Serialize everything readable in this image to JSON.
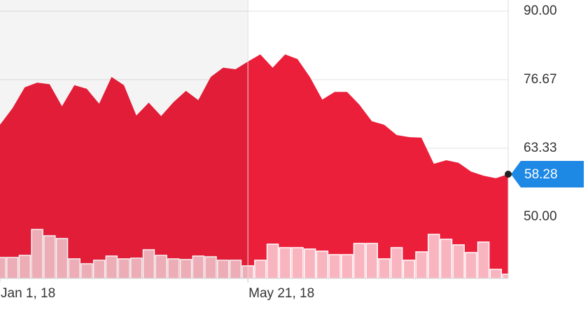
{
  "chart_data": {
    "type": "area",
    "categories": [
      "Jan 1, 18",
      null,
      null,
      null,
      null,
      null,
      null,
      null,
      null,
      null,
      null,
      null,
      null,
      null,
      null,
      null,
      null,
      null,
      null,
      null,
      "May 21, 18",
      null,
      null,
      null,
      null,
      null,
      null,
      null,
      null,
      null,
      null,
      null,
      null,
      null,
      null,
      null,
      null,
      null,
      null,
      null,
      null,
      null
    ],
    "series": [
      {
        "color": "#ec1f3b",
        "values": [
          67.9,
          71.1,
          75.2,
          76.1,
          75.8,
          71.5,
          75.6,
          74.9,
          72.0,
          77.2,
          75.6,
          69.7,
          72.2,
          69.6,
          72.3,
          74.5,
          72.7,
          77.2,
          79.0,
          78.7,
          80.2,
          81.6,
          79.0,
          81.6,
          80.7,
          77.2,
          72.8,
          74.3,
          74.3,
          71.8,
          68.6,
          67.9,
          65.9,
          65.5,
          65.4,
          60.3,
          61.0,
          60.5,
          58.8,
          58.0,
          57.5,
          58.28
        ]
      },
      {
        "color": "#f8b5c0",
        "axis": "y2",
        "values": [
          30,
          30,
          33,
          70,
          61,
          57,
          28,
          21,
          26,
          32,
          28,
          29,
          41,
          33,
          28,
          27,
          32,
          31,
          26,
          26,
          18,
          26,
          49,
          44,
          44,
          42,
          39,
          34,
          34,
          50,
          50,
          28,
          44,
          26,
          38,
          63,
          56,
          48,
          37,
          52,
          13,
          6
        ]
      }
    ],
    "ylim": [
      38,
      90
    ],
    "yticks": [
      {
        "value": 90,
        "label": "90.00"
      },
      76.67,
      63.33,
      {
        "value": 50,
        "label": "50.00"
      }
    ],
    "y2lim": [
      0,
      100
    ],
    "grid": true,
    "last_value_color": "#1e88e5"
  }
}
